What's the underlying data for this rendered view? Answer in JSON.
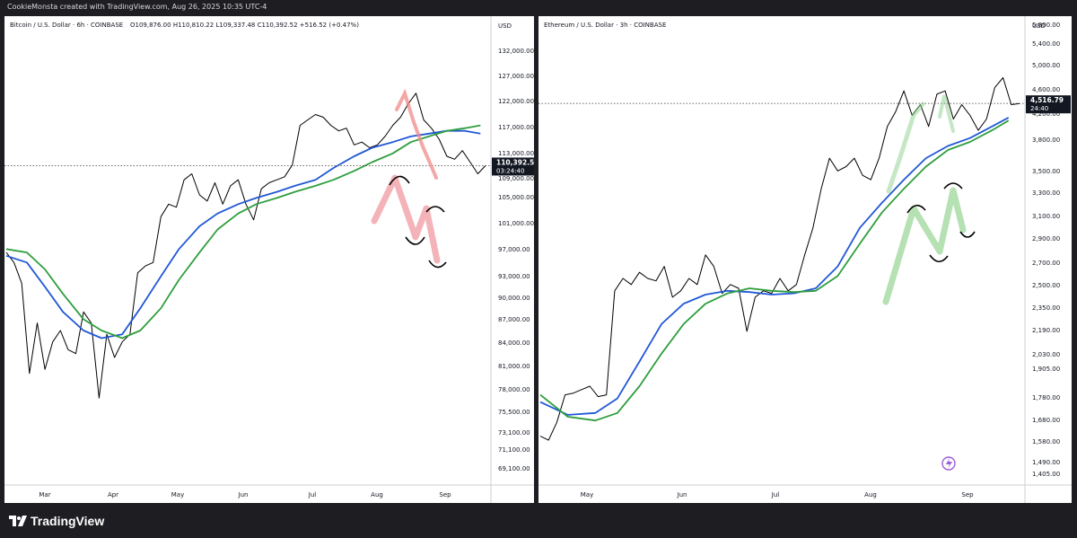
{
  "header": {
    "caption": "CookieMonsta created with TradingView.com, Aug 26, 2025 10:35 UTC-4"
  },
  "brand": {
    "name": "TradingView"
  },
  "chart_data": [
    {
      "type": "line",
      "title": "Bitcoin / U.S. Dollar · 6h · COINBASE",
      "ohlc": "O109,876.00 H110,810.22 L109,337.48 C110,392.52 +516.52 (+0.47%)",
      "currency": "USD",
      "y_scale": "log",
      "ylim": [
        66000,
        138000
      ],
      "y_ticks": [
        132000,
        127000,
        122000,
        117000,
        113000,
        109000,
        105000,
        101000,
        97000,
        93000,
        90000,
        87000,
        84000,
        81000,
        78000,
        75500,
        73100,
        71100,
        69100
      ],
      "y_tick_labels": [
        "132,000.00",
        "127,000.00",
        "122,000.00",
        "117,000.00",
        "113,000.00",
        "109,000.00",
        "105,000.00",
        "101,000.00",
        "97,000.00",
        "93,000.00",
        "90,000.00",
        "87,000.00",
        "84,000.00",
        "81,000.00",
        "78,000.00",
        "75,500.00",
        "73,100.00",
        "71,100.00",
        "69,100.00"
      ],
      "x_ticks": [
        "Mar",
        "Apr",
        "May",
        "Jun",
        "Jul",
        "Aug",
        "Sep"
      ],
      "last_price_label": "110,392.52",
      "countdown_label": "03:24:40",
      "last_price": 110392.52,
      "series": [
        {
          "color": "#000000",
          "style": "price",
          "x": [
            0,
            3,
            6,
            9,
            12,
            15,
            18,
            21,
            24,
            27,
            30,
            33,
            36,
            39,
            42,
            45,
            48,
            51,
            54,
            57,
            60,
            63,
            66,
            69,
            72,
            75,
            78,
            81,
            84,
            87,
            90,
            93,
            96,
            99,
            102,
            105,
            108,
            111,
            114,
            117,
            120,
            123,
            126,
            129,
            132,
            135,
            138,
            141,
            144,
            147,
            150,
            153,
            156,
            159,
            162,
            165,
            168,
            171,
            174,
            177,
            180,
            183,
            186
          ],
          "values": [
            96500,
            95000,
            92000,
            80000,
            86500,
            80500,
            84000,
            85500,
            83000,
            82500,
            88000,
            86500,
            77000,
            85000,
            82000,
            84000,
            85000,
            93500,
            94500,
            95000,
            102000,
            104000,
            103500,
            108000,
            109000,
            105500,
            104500,
            107500,
            104000,
            107000,
            108000,
            104000,
            101500,
            106500,
            107500,
            108000,
            108500,
            110500,
            117500,
            118500,
            119500,
            119000,
            117500,
            116500,
            117000,
            114000,
            114500,
            113500,
            114000,
            115500,
            117500,
            119000,
            121500,
            123500,
            118500,
            117000,
            115000,
            112000,
            111500,
            113000,
            111000,
            109000,
            110392.52
          ]
        },
        {
          "color": "#2158d6",
          "style": "ma",
          "x": [
            0,
            8,
            15,
            22,
            30,
            37,
            45,
            52,
            60,
            67,
            75,
            82,
            90,
            97,
            105,
            112,
            120,
            127,
            135,
            142,
            150,
            157,
            164,
            171,
            178,
            184
          ],
          "values": [
            96000,
            95000,
            91500,
            88000,
            85500,
            84500,
            85000,
            88500,
            93000,
            97000,
            100500,
            102500,
            104000,
            105000,
            106000,
            107000,
            108000,
            110000,
            112000,
            113500,
            114500,
            115500,
            116000,
            116500,
            116500,
            116000
          ]
        },
        {
          "color": "#2e9e3c",
          "style": "ma",
          "x": [
            0,
            8,
            15,
            22,
            30,
            37,
            45,
            52,
            60,
            67,
            75,
            82,
            90,
            97,
            105,
            112,
            120,
            127,
            135,
            142,
            150,
            157,
            164,
            171,
            178,
            184
          ],
          "values": [
            97000,
            96500,
            94000,
            90500,
            87000,
            85500,
            84500,
            85500,
            88500,
            92500,
            96500,
            100000,
            102500,
            104000,
            105000,
            106000,
            107000,
            108000,
            109500,
            111000,
            112500,
            114500,
            115500,
            116500,
            117000,
            117500
          ]
        }
      ]
    },
    {
      "type": "line",
      "title": "Ethereum / U.S. Dollar · 3h · COINBASE",
      "currency": "USD",
      "y_scale": "log",
      "ylim": [
        1360,
        6300
      ],
      "y_ticks": [
        5800,
        5400,
        5000,
        4600,
        4200,
        3800,
        3500,
        3300,
        3100,
        2900,
        2700,
        2500,
        2350,
        2190,
        2030,
        1905,
        1780,
        1680,
        1580,
        1490,
        1405
      ],
      "y_tick_labels": [
        "5,800.00",
        "5,400.00",
        "5,000.00",
        "4,600.00",
        "4,200.00",
        "3,800.00",
        "3,500.00",
        "3,300.00",
        "3,100.00",
        "2,900.00",
        "2,700.00",
        "2,500.00",
        "2,350.00",
        "2,190.00",
        "2,030.00",
        "1,905.00",
        "1,780.00",
        "1,680.00",
        "1,580.00",
        "1,490.00",
        "1,405.00"
      ],
      "x_ticks": [
        "May",
        "Jun",
        "Jul",
        "Aug",
        "Sep"
      ],
      "last_price_label": "4,516.79",
      "countdown_label": "24:40",
      "last_price": 4516.79,
      "series": [
        {
          "color": "#000000",
          "style": "price",
          "x": [
            0,
            3,
            6,
            9,
            12,
            15,
            18,
            21,
            24,
            27,
            30,
            33,
            36,
            39,
            42,
            45,
            48,
            51,
            54,
            57,
            60,
            63,
            66,
            69,
            72,
            75,
            78,
            81,
            84,
            87,
            90,
            93,
            96,
            99,
            102,
            105,
            108,
            111,
            114,
            117,
            120,
            123,
            126,
            129,
            132,
            135,
            138,
            141,
            144,
            147,
            150,
            153,
            156,
            159,
            162,
            165,
            168,
            171,
            174
          ],
          "values": [
            1580,
            1560,
            1650,
            1800,
            1810,
            1830,
            1850,
            1790,
            1800,
            2500,
            2600,
            2550,
            2650,
            2600,
            2580,
            2700,
            2450,
            2500,
            2600,
            2550,
            2800,
            2700,
            2480,
            2550,
            2520,
            2200,
            2450,
            2500,
            2480,
            2600,
            2500,
            2550,
            2800,
            3050,
            3450,
            3800,
            3650,
            3700,
            3800,
            3600,
            3550,
            3800,
            4200,
            4400,
            4700,
            4350,
            4500,
            4200,
            4650,
            4700,
            4300,
            4500,
            4350,
            4150,
            4300,
            4750,
            4900,
            4500,
            4516.79
          ]
        },
        {
          "color": "#2158d6",
          "style": "ma",
          "x": [
            0,
            10,
            20,
            28,
            36,
            44,
            52,
            60,
            68,
            76,
            84,
            92,
            100,
            108,
            116,
            124,
            132,
            140,
            148,
            156,
            164,
            170
          ],
          "values": [
            1760,
            1690,
            1700,
            1780,
            2000,
            2250,
            2400,
            2470,
            2500,
            2490,
            2470,
            2480,
            2520,
            2700,
            3050,
            3300,
            3550,
            3800,
            3950,
            4050,
            4200,
            4320
          ]
        },
        {
          "color": "#2e9e3c",
          "style": "ma",
          "x": [
            0,
            10,
            20,
            28,
            36,
            44,
            52,
            60,
            68,
            76,
            84,
            92,
            100,
            108,
            116,
            124,
            132,
            140,
            148,
            156,
            164,
            170
          ],
          "values": [
            1800,
            1680,
            1660,
            1700,
            1850,
            2050,
            2250,
            2400,
            2480,
            2520,
            2500,
            2490,
            2500,
            2620,
            2900,
            3200,
            3450,
            3700,
            3900,
            4000,
            4150,
            4280
          ]
        }
      ]
    }
  ]
}
